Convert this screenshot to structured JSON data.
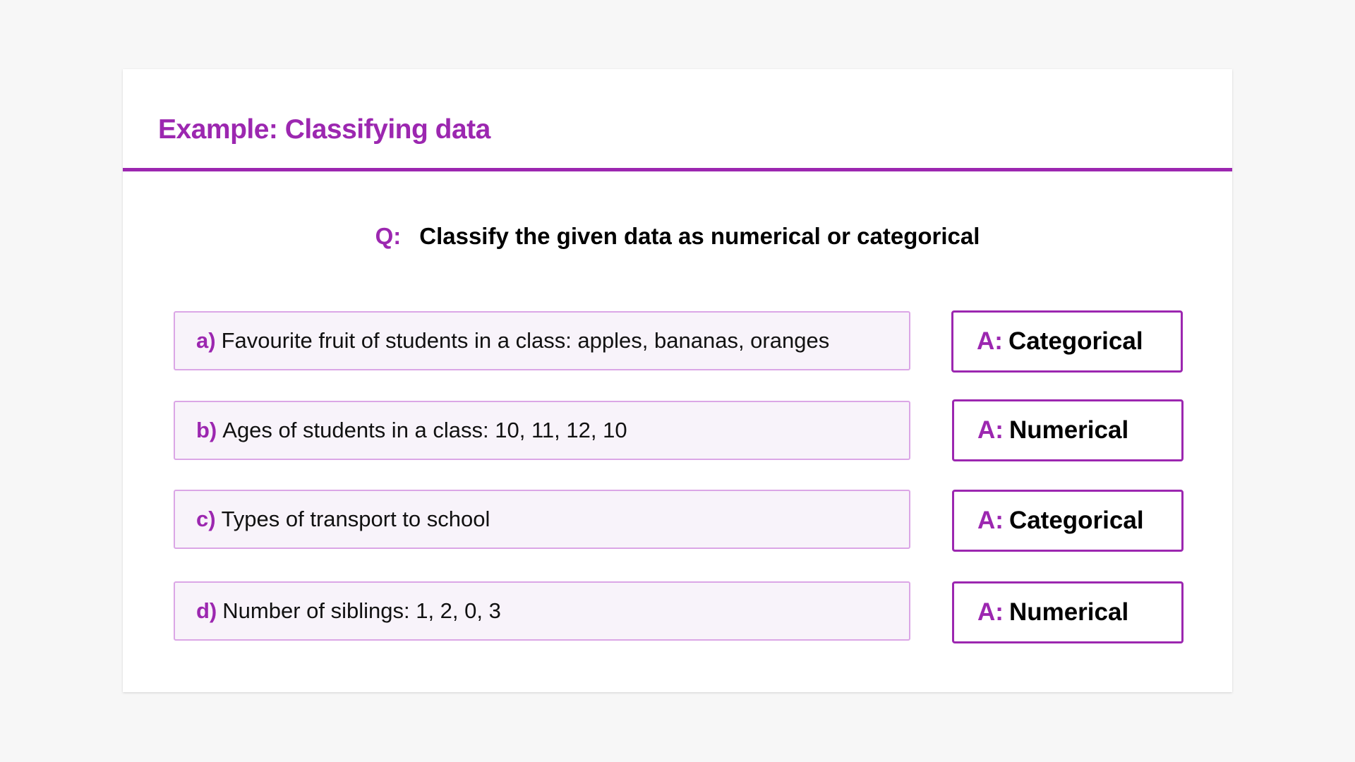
{
  "title": "Example: Classifying data",
  "question": {
    "prefix": "Q:",
    "text": "Classify the given data as numerical or categorical"
  },
  "items": [
    {
      "label": "a)",
      "text": "Favourite fruit of students in a class: apples, bananas, oranges",
      "answer_prefix": "A:",
      "answer": "Categorical"
    },
    {
      "label": "b)",
      "text": "Ages of students in a class: 10, 11, 12, 10",
      "answer_prefix": "A:",
      "answer": "Numerical"
    },
    {
      "label": "c)",
      "text": "Types of transport to school",
      "answer_prefix": "A:",
      "answer": "Categorical"
    },
    {
      "label": "d)",
      "text": "Number of siblings: 1, 2, 0, 3",
      "answer_prefix": "A:",
      "answer": "Numerical"
    }
  ],
  "colors": {
    "accent": "#9c27b0",
    "item_bg": "#f8f3fa",
    "item_border": "#dba6e6"
  }
}
